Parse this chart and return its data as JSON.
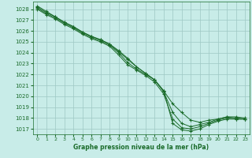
{
  "title": "Graphe pression niveau de la mer (hPa)",
  "bg_color": "#c8ece8",
  "grid_color": "#9ec8c4",
  "line_color": "#1a6b2a",
  "xlim": [
    -0.5,
    23.5
  ],
  "ylim": [
    1016.5,
    1028.7
  ],
  "yticks": [
    1017,
    1018,
    1019,
    1020,
    1021,
    1022,
    1023,
    1024,
    1025,
    1026,
    1027,
    1028
  ],
  "xticks": [
    0,
    1,
    2,
    3,
    4,
    5,
    6,
    7,
    8,
    9,
    10,
    11,
    12,
    13,
    14,
    15,
    16,
    17,
    18,
    19,
    20,
    21,
    22,
    23
  ],
  "series": [
    [
      1028.3,
      1027.8,
      1027.3,
      1026.8,
      1026.4,
      1025.9,
      1025.5,
      1025.2,
      1024.8,
      1024.2,
      1023.5,
      1022.7,
      1022.1,
      1021.5,
      1020.5,
      1019.3,
      1018.5,
      1017.8,
      1017.6,
      1017.8,
      1017.9,
      1018.1,
      1018.0,
      1017.9
    ],
    [
      1028.1,
      1027.6,
      1027.2,
      1026.7,
      1026.3,
      1025.8,
      1025.4,
      1025.1,
      1024.7,
      1024.0,
      1023.1,
      1022.5,
      1022.0,
      1021.5,
      1020.5,
      1017.5,
      1016.9,
      1016.8,
      1017.0,
      1017.4,
      1017.7,
      1017.9,
      1017.9,
      1017.9
    ],
    [
      1028.0,
      1027.5,
      1027.1,
      1026.6,
      1026.2,
      1025.7,
      1025.3,
      1025.0,
      1024.6,
      1023.8,
      1022.9,
      1022.4,
      1021.9,
      1021.3,
      1020.2,
      1017.9,
      1017.1,
      1017.0,
      1017.2,
      1017.5,
      1017.8,
      1018.0,
      1017.9,
      1017.9
    ],
    [
      1028.2,
      1027.7,
      1027.3,
      1026.8,
      1026.4,
      1025.9,
      1025.5,
      1025.2,
      1024.8,
      1024.1,
      1023.4,
      1022.7,
      1022.1,
      1021.5,
      1020.4,
      1018.5,
      1017.5,
      1017.2,
      1017.4,
      1017.6,
      1017.9,
      1018.1,
      1018.1,
      1018.0
    ]
  ]
}
